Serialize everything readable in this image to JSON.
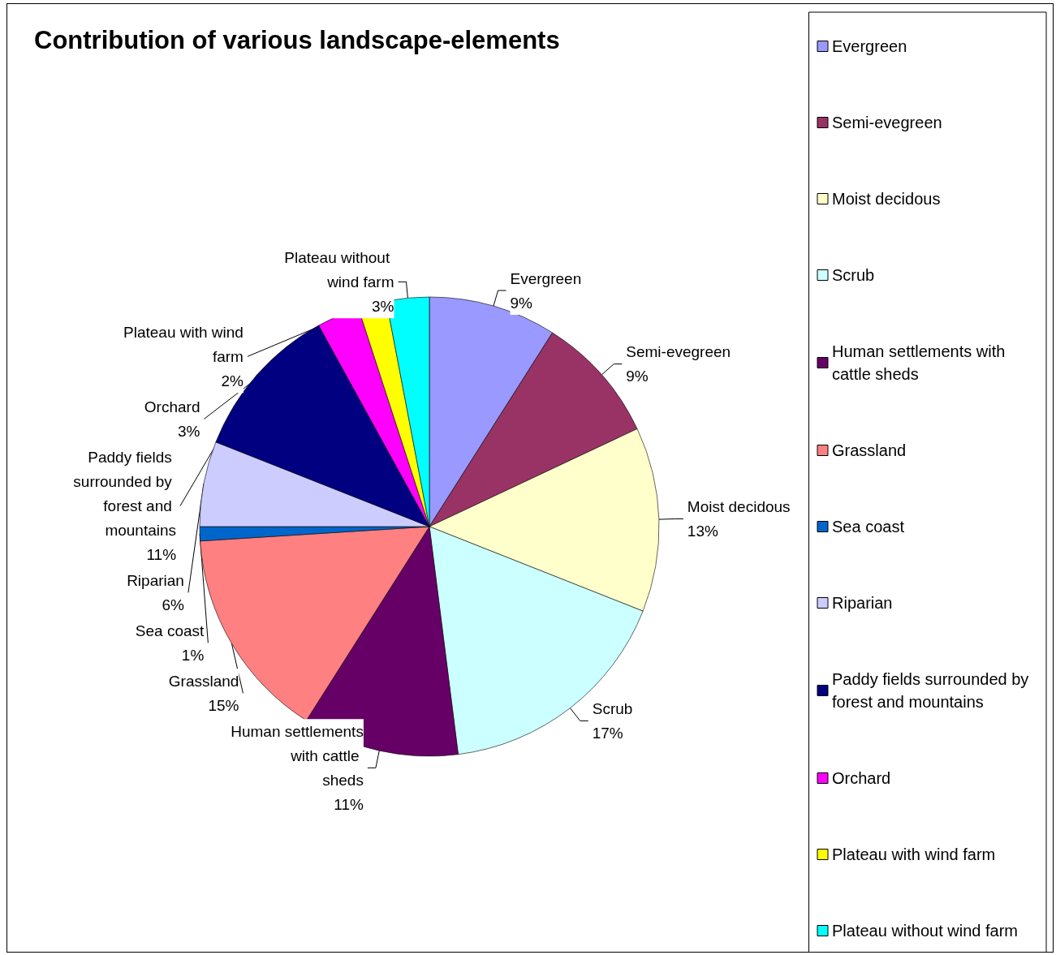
{
  "chart_data": {
    "type": "pie",
    "title": "Contribution of various landscape-elements",
    "categories": [
      "Evergreen",
      "Semi-evegreen",
      "Moist decidous",
      "Scrub",
      "Human settlements with cattle sheds",
      "Grassland",
      "Sea coast",
      "Riparian",
      "Paddy fields surrounded by forest and mountains",
      "Orchard",
      "Plateau with wind farm",
      "Plateau without wind farm"
    ],
    "values": [
      9,
      9,
      13,
      17,
      11,
      15,
      1,
      6,
      11,
      3,
      2,
      3
    ],
    "value_labels": [
      "9%",
      "9%",
      "13%",
      "17%",
      "11%",
      "15%",
      "1%",
      "6%",
      "11%",
      "3%",
      "2%",
      "3%"
    ],
    "colors": [
      "#9999ff",
      "#993366",
      "#ffffcc",
      "#ccffff",
      "#660066",
      "#ff8080",
      "#0066cc",
      "#ccccff",
      "#000080",
      "#ff00ff",
      "#ffff00",
      "#00ffff"
    ],
    "legend": "right"
  }
}
